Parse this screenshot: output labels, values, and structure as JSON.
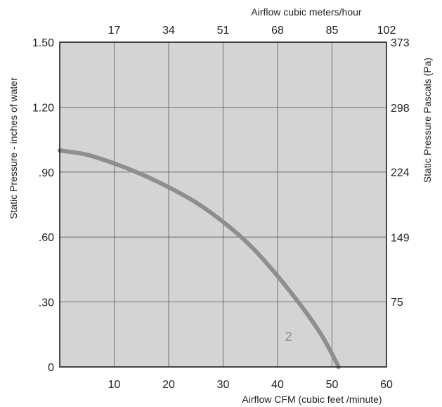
{
  "chart_data": {
    "type": "line",
    "title": "",
    "x_axis_bottom": {
      "label": "Airflow  CFM (cubic feet /minute)",
      "range": [
        0,
        60
      ],
      "ticks": [
        10,
        20,
        30,
        40,
        50,
        60
      ]
    },
    "x_axis_top": {
      "label": "Airflow cubic meters/hour",
      "range": [
        0,
        102
      ],
      "ticks": [
        17,
        34,
        51,
        68,
        85,
        102
      ]
    },
    "y_axis_left": {
      "label": "Static Pressure - inches of water",
      "range": [
        0,
        1.5
      ],
      "ticks": [
        {
          "value": 0,
          "label": "0"
        },
        {
          "value": 0.3,
          "label": ".30"
        },
        {
          "value": 0.6,
          "label": ".60"
        },
        {
          "value": 0.9,
          "label": ".90"
        },
        {
          "value": 1.2,
          "label": "1.20"
        },
        {
          "value": 1.5,
          "label": "1.50"
        }
      ]
    },
    "y_axis_right": {
      "label": "Static Pressure Pascals (Pa)",
      "range": [
        0,
        373
      ],
      "ticks": [
        75,
        149,
        224,
        298,
        373
      ]
    },
    "grid": true,
    "series": [
      {
        "name": "2",
        "color": "#8e8e8e",
        "x": [
          0,
          5,
          10,
          15,
          20,
          25,
          30,
          35,
          40,
          45,
          48,
          50,
          51.2
        ],
        "y": [
          1.0,
          0.98,
          0.94,
          0.89,
          0.83,
          0.76,
          0.67,
          0.56,
          0.42,
          0.26,
          0.15,
          0.06,
          0.0
        ]
      }
    ],
    "annotations": [
      {
        "text": "2",
        "x": 42,
        "y": 0.12
      }
    ],
    "colors": {
      "plot_background": "#d4d4d4",
      "grid": "#555555",
      "frame": "#111111",
      "curve": "#8e8e8e"
    }
  }
}
